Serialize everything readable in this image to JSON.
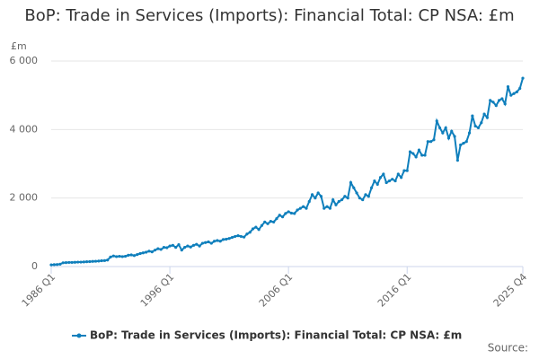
{
  "chart_data": {
    "type": "line",
    "title": "BoP: Trade in Services (Imports): Financial Total: CP NSA: £m",
    "y_label": "£m",
    "source": "Source:",
    "categories": [
      "1986 Q1",
      null,
      null,
      null,
      null,
      null,
      null,
      null,
      null,
      null,
      null,
      null,
      null,
      null,
      null,
      null,
      null,
      null,
      null,
      null,
      null,
      null,
      null,
      null,
      null,
      null,
      null,
      null,
      null,
      null,
      null,
      null,
      null,
      null,
      null,
      null,
      null,
      null,
      null,
      null,
      "1996 Q1",
      null,
      null,
      null,
      null,
      null,
      null,
      null,
      null,
      null,
      null,
      null,
      null,
      null,
      null,
      null,
      null,
      null,
      null,
      null,
      null,
      null,
      null,
      null,
      null,
      null,
      null,
      null,
      null,
      null,
      null,
      null,
      null,
      null,
      null,
      null,
      null,
      null,
      null,
      null,
      "2006 Q1",
      null,
      null,
      null,
      null,
      null,
      null,
      null,
      null,
      null,
      null,
      null,
      null,
      null,
      null,
      null,
      null,
      null,
      null,
      null,
      null,
      null,
      null,
      null,
      null,
      null,
      null,
      null,
      null,
      null,
      null,
      null,
      null,
      null,
      null,
      null,
      null,
      null,
      null,
      null,
      "2016 Q1",
      null,
      null,
      null,
      null,
      null,
      null,
      null,
      null,
      null,
      null,
      null,
      null,
      null,
      null,
      null,
      null,
      null,
      null,
      null,
      null,
      null,
      null,
      null,
      null,
      null,
      null,
      null,
      null,
      null,
      null,
      null,
      null,
      null,
      null,
      null,
      null,
      null,
      null,
      "2025 Q4"
    ],
    "series": [
      {
        "name": "BoP: Trade in Services (Imports): Financial Total: CP NSA: £m",
        "color": "#0f7fbc",
        "values": [
          50,
          55,
          60,
          70,
          110,
          115,
          120,
          120,
          125,
          130,
          130,
          135,
          140,
          145,
          150,
          155,
          160,
          170,
          175,
          190,
          280,
          310,
          290,
          300,
          290,
          300,
          330,
          340,
          320,
          350,
          380,
          400,
          420,
          450,
          430,
          480,
          520,
          500,
          560,
          550,
          600,
          620,
          560,
          640,
          480,
          560,
          600,
          570,
          620,
          650,
          600,
          680,
          700,
          720,
          680,
          740,
          760,
          740,
          790,
          800,
          820,
          850,
          880,
          900,
          880,
          860,
          950,
          1000,
          1100,
          1150,
          1080,
          1200,
          1300,
          1250,
          1320,
          1300,
          1400,
          1500,
          1450,
          1550,
          1600,
          1560,
          1550,
          1650,
          1700,
          1750,
          1700,
          1900,
          2100,
          2000,
          2150,
          2050,
          1700,
          1750,
          1700,
          1950,
          1800,
          1900,
          1950,
          2050,
          2000,
          2450,
          2300,
          2150,
          2000,
          1950,
          2100,
          2050,
          2300,
          2500,
          2400,
          2600,
          2700,
          2450,
          2500,
          2550,
          2500,
          2700,
          2600,
          2800,
          2800,
          3350,
          3300,
          3200,
          3400,
          3250,
          3250,
          3650,
          3650,
          3700,
          4250,
          4050,
          3900,
          4050,
          3750,
          3950,
          3800,
          3100,
          3550,
          3600,
          3650,
          3900,
          4400,
          4100,
          4050,
          4200,
          4450,
          4350,
          4850,
          4800,
          4700,
          4850,
          4900,
          4750,
          5250,
          5000,
          5050,
          5100,
          5200,
          5500
        ]
      }
    ],
    "ylim": [
      0,
      6000
    ],
    "yticks": [
      0,
      {
        "value": 2000,
        "label": "2 000"
      },
      {
        "value": 4000,
        "label": "4 000"
      },
      {
        "value": 6000,
        "label": "6 000"
      }
    ],
    "grid": true,
    "legend": "bottom"
  }
}
